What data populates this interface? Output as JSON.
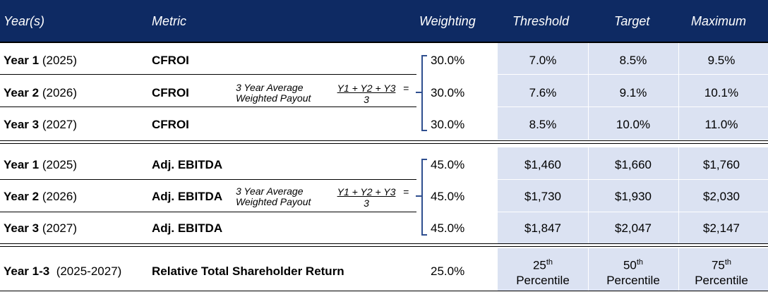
{
  "header": {
    "year": "Year(s)",
    "metric": "Metric",
    "weighting": "Weighting",
    "threshold": "Threshold",
    "target": "Target",
    "maximum": "Maximum"
  },
  "cfroi": {
    "rows": [
      {
        "year_label": "Year 1",
        "year_paren": "(2025)",
        "metric": "CFROI",
        "weighting": "30.0%",
        "threshold": "7.0%",
        "target": "8.5%",
        "maximum": "9.5%"
      },
      {
        "year_label": "Year 2",
        "year_paren": "(2026)",
        "metric": "CFROI",
        "weighting": "30.0%",
        "threshold": "7.6%",
        "target": "9.1%",
        "maximum": "10.1%"
      },
      {
        "year_label": "Year 3",
        "year_paren": "(2027)",
        "metric": "CFROI",
        "weighting": "30.0%",
        "threshold": "8.5%",
        "target": "10.0%",
        "maximum": "11.0%"
      }
    ],
    "formula_line1": "3 Year Average",
    "formula_line2": "Weighted Payout",
    "formula_numerator": "Y1 + Y2 + Y3",
    "formula_eq": "=",
    "formula_denominator": "3"
  },
  "ebitda": {
    "rows": [
      {
        "year_label": "Year 1",
        "year_paren": "(2025)",
        "metric": "Adj. EBITDA",
        "weighting": "45.0%",
        "threshold": "$1,460",
        "target": "$1,660",
        "maximum": "$1,760"
      },
      {
        "year_label": "Year 2",
        "year_paren": "(2026)",
        "metric": "Adj. EBITDA",
        "weighting": "45.0%",
        "threshold": "$1,730",
        "target": "$1,930",
        "maximum": "$2,030"
      },
      {
        "year_label": "Year 3",
        "year_paren": "(2027)",
        "metric": "Adj. EBITDA",
        "weighting": "45.0%",
        "threshold": "$1,847",
        "target": "$2,047",
        "maximum": "$2,147"
      }
    ],
    "formula_line1": "3 Year Average",
    "formula_line2": "Weighted Payout",
    "formula_numerator": "Y1 + Y2 + Y3",
    "formula_eq": "=",
    "formula_denominator": "3"
  },
  "tsr": {
    "year_label": "Year 1-3",
    "year_paren": "(2025-2027)",
    "metric": "Relative Total Shareholder Return",
    "weighting": "25.0%",
    "threshold_num": "25",
    "threshold_sup": "th",
    "target_num": "50",
    "target_sup": "th",
    "maximum_num": "75",
    "maximum_sup": "th",
    "percentile": "Percentile"
  },
  "colors": {
    "header_bg": "#0e2a63",
    "shade_bg": "#dbe2f2",
    "brace": "#2f4f8f"
  }
}
